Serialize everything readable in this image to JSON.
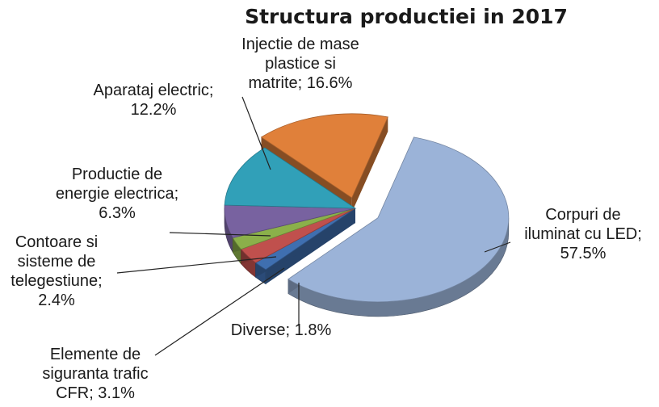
{
  "chart_data": {
    "type": "pie",
    "title": "Structura productiei in 2017",
    "slices": [
      {
        "label_lines": [
          "Corpuri de",
          "iluminat cu LED;",
          "57.5%"
        ],
        "value": 57.5,
        "color": "#9bb3d8"
      },
      {
        "label_lines": [
          "Diverse; 1.8%"
        ],
        "value": 1.8,
        "color": "#3f6fb0"
      },
      {
        "label_lines": [
          "Elemente de",
          "siguranta trafic",
          "CFR; 3.1%"
        ],
        "value": 3.1,
        "color": "#c0504d"
      },
      {
        "label_lines": [
          "Contoare si",
          "sisteme de",
          "telegestiune;",
          "2.4%"
        ],
        "value": 2.4,
        "color": "#8bb04a"
      },
      {
        "label_lines": [
          "Productie de",
          "energie electrica;",
          "6.3%"
        ],
        "value": 6.3,
        "color": "#7862a0"
      },
      {
        "label_lines": [
          "Aparataj electric;",
          "12.2%"
        ],
        "value": 12.2,
        "color": "#31a0b8"
      },
      {
        "label_lines": [
          "Injectie de mase",
          "plastice si",
          "matrite; 16.6%"
        ],
        "value": 16.6,
        "color": "#e0803a"
      }
    ],
    "exploded": "Corpuri de iluminat cu LED; Injectie de mase plastice si matrite",
    "style": "3d exploded pie, labels outside with leader lines"
  }
}
